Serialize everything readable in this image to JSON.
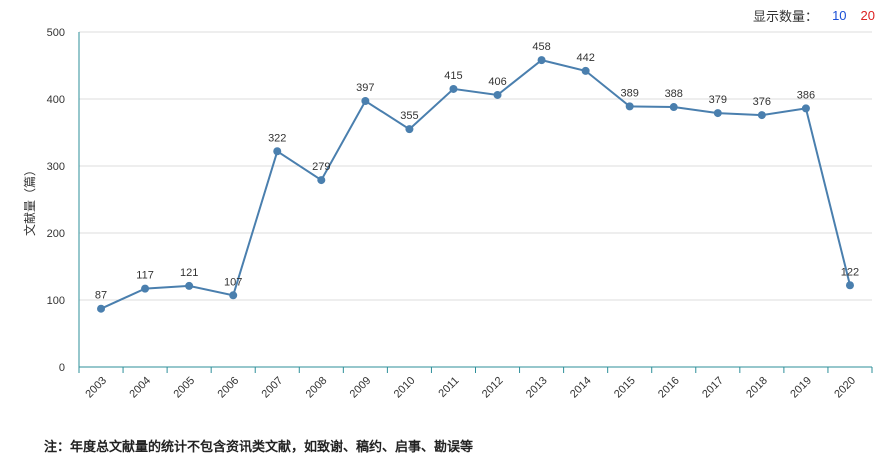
{
  "controls": {
    "label": "显示数量：",
    "options": [
      "10",
      "20"
    ]
  },
  "note": "注：年度总文献量的统计不包含资讯类文献，如致谢、稿约、启事、勘误等",
  "colors": {
    "line": "#4a7fae",
    "point": "#4a7fae",
    "axis": "#2e8f9a",
    "grid": "#dddddd"
  },
  "chart_data": {
    "type": "line",
    "title": "",
    "xlabel": "",
    "ylabel": "文献量（篇）",
    "ylim": [
      0,
      500
    ],
    "yticks": [
      0,
      100,
      200,
      300,
      400,
      500
    ],
    "grid": true,
    "categories": [
      "2003",
      "2004",
      "2005",
      "2006",
      "2007",
      "2008",
      "2009",
      "2010",
      "2011",
      "2012",
      "2013",
      "2014",
      "2015",
      "2016",
      "2017",
      "2018",
      "2019",
      "2020"
    ],
    "series": [
      {
        "name": "",
        "values": [
          87,
          117,
          121,
          107,
          322,
          279,
          397,
          355,
          415,
          406,
          458,
          442,
          389,
          388,
          379,
          376,
          386,
          122
        ]
      }
    ]
  }
}
